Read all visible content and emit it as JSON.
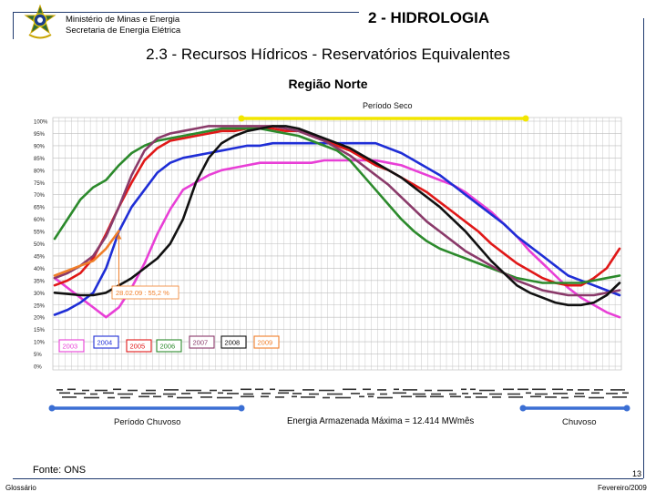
{
  "header": {
    "ministry_line1": "Ministério de Minas e Energia",
    "ministry_line2": "Secretaria de Energia Elétrica",
    "section_title": "2 - HIDROLOGIA",
    "page_title": "2.3 - Recursos Hídricos - Reservatórios Equivalentes",
    "region_title": "Região Norte"
  },
  "footer": {
    "source": "Fonte: ONS",
    "glossary_link": "Glossário",
    "page_number": "13",
    "date": "Fevereiro/2009"
  },
  "chart_data": {
    "type": "line",
    "title": "Região Norte",
    "xlabel": "",
    "ylabel": "",
    "ylim": [
      0,
      100
    ],
    "yticks": [
      "100%",
      "95%",
      "90%",
      "85%",
      "80%",
      "75%",
      "70%",
      "65%",
      "60%",
      "55%",
      "50%",
      "45%",
      "40%",
      "35%",
      "30%",
      "25%",
      "20%",
      "15%",
      "10%",
      "5%",
      "0%"
    ],
    "x_points": 45,
    "grid": true,
    "period_labels": {
      "dry": "Período Seco",
      "wet": "Período Chuvoso",
      "wet_right": "Chuvoso"
    },
    "period_colors": {
      "dry": "#f2e600",
      "wet": "#3b6fd4"
    },
    "annotation": {
      "text": "28.02.09 : 55,2 %",
      "x_index": 5,
      "y": 55.2,
      "color": "#f07f2a"
    },
    "footnote": "Energia Armazenada Máxima = 12.414 MWmês",
    "series": [
      {
        "name": "2003",
        "color": "#e83fd6",
        "values": [
          36,
          32,
          28,
          24,
          20,
          24,
          32,
          42,
          54,
          64,
          72,
          75,
          78,
          80,
          81,
          82,
          83,
          83,
          83,
          83,
          83,
          84,
          84,
          84,
          84,
          84,
          83,
          82,
          80,
          78,
          76,
          74,
          71,
          67,
          63,
          58,
          53,
          47,
          42,
          37,
          32,
          28,
          25,
          22,
          20
        ]
      },
      {
        "name": "2004",
        "color": "#1f2ed6",
        "values": [
          21,
          23,
          26,
          30,
          40,
          55,
          65,
          72,
          79,
          83,
          85,
          86,
          87,
          88,
          89,
          90,
          90,
          91,
          91,
          91,
          91,
          91,
          91,
          91,
          91,
          91,
          89,
          87,
          84,
          81,
          78,
          74,
          70,
          66,
          62,
          58,
          53,
          49,
          45,
          41,
          37,
          35,
          33,
          31,
          29
        ]
      },
      {
        "name": "2005",
        "color": "#e01818",
        "values": [
          33,
          35,
          38,
          44,
          54,
          65,
          75,
          84,
          89,
          92,
          93,
          94,
          95,
          96,
          96,
          97,
          97,
          97,
          96,
          96,
          94,
          92,
          90,
          88,
          85,
          82,
          80,
          77,
          74,
          71,
          67,
          63,
          59,
          55,
          50,
          46,
          42,
          39,
          36,
          34,
          33,
          33,
          36,
          40,
          48
        ]
      },
      {
        "name": "2006",
        "color": "#2c8a2c",
        "values": [
          52,
          60,
          68,
          73,
          76,
          82,
          87,
          90,
          92,
          93,
          94,
          95,
          96,
          97,
          97,
          97,
          97,
          96,
          95,
          94,
          92,
          90,
          88,
          84,
          78,
          72,
          66,
          60,
          55,
          51,
          48,
          46,
          44,
          42,
          40,
          38,
          36,
          35,
          34,
          34,
          34,
          34,
          35,
          36,
          37
        ]
      },
      {
        "name": "2007",
        "color": "#8a3a6a",
        "values": [
          36,
          38,
          41,
          45,
          53,
          65,
          78,
          88,
          93,
          95,
          96,
          97,
          98,
          98,
          98,
          98,
          98,
          98,
          97,
          96,
          94,
          92,
          89,
          86,
          82,
          78,
          74,
          69,
          64,
          59,
          55,
          51,
          47,
          44,
          41,
          38,
          35,
          33,
          31,
          30,
          29,
          29,
          29,
          30,
          31
        ]
      },
      {
        "name": "2008",
        "color": "#111111",
        "values": [
          30,
          29.5,
          29,
          29,
          30,
          33,
          36,
          40,
          44,
          50,
          60,
          75,
          85,
          91,
          94,
          96,
          97,
          98,
          98,
          97,
          95,
          93,
          91,
          89,
          86,
          83,
          80,
          77,
          73,
          69,
          65,
          60,
          55,
          49,
          43,
          38,
          33,
          30,
          28,
          26,
          25,
          25,
          26,
          29,
          34
        ]
      },
      {
        "name": "2009",
        "color": "#f07f2a",
        "values": [
          37,
          39,
          41,
          43,
          48,
          55.2
        ]
      }
    ]
  }
}
